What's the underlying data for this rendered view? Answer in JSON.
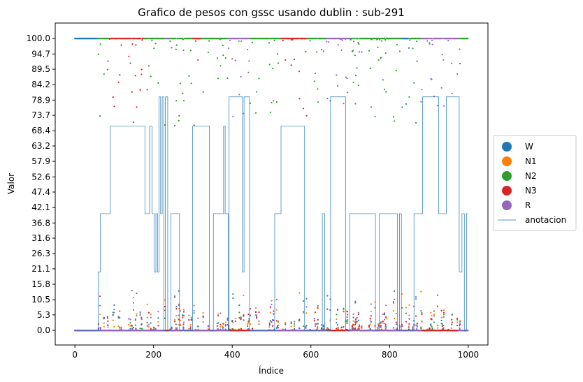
{
  "chart_data": {
    "type": "scatter",
    "title": "Grafico de pesos con gssc usando dublin :  sub-291",
    "xlabel": "Índice",
    "ylabel": "Valor",
    "xlim": [
      -50,
      1050
    ],
    "ylim": [
      -5,
      105.3
    ],
    "x_ticks": [
      0,
      200,
      400,
      600,
      800,
      1000
    ],
    "y_ticks": [
      "0.0",
      "5.3",
      "10.5",
      "15.8",
      "21.1",
      "26.3",
      "31.6",
      "36.8",
      "42.1",
      "47.4",
      "52.6",
      "57.9",
      "63.2",
      "68.4",
      "73.7",
      "78.9",
      "84.2",
      "89.5",
      "94.7",
      "100.0"
    ],
    "legend_position": "center-right-outside",
    "grid": false,
    "series": [
      {
        "name": "W",
        "color": "#1f77b4",
        "kind": "dots"
      },
      {
        "name": "N1",
        "color": "#ff7f0e",
        "kind": "dots"
      },
      {
        "name": "N2",
        "color": "#2ca02c",
        "kind": "dots"
      },
      {
        "name": "N3",
        "color": "#d62728",
        "kind": "dots"
      },
      {
        "name": "R",
        "color": "#9467bd",
        "kind": "dots"
      },
      {
        "name": "anotacion",
        "color": "#1f77b4",
        "kind": "line"
      }
    ],
    "dominant_stage_segments": [
      {
        "stage": "W",
        "from": 0,
        "to": 58
      },
      {
        "stage": "N2",
        "from": 58,
        "to": 88
      },
      {
        "stage": "N3",
        "from": 88,
        "to": 175
      },
      {
        "stage": "N2",
        "from": 175,
        "to": 230
      },
      {
        "stage": "R",
        "from": 230,
        "to": 240
      },
      {
        "stage": "N2",
        "from": 240,
        "to": 300
      },
      {
        "stage": "N3",
        "from": 300,
        "to": 320
      },
      {
        "stage": "N2",
        "from": 320,
        "to": 390
      },
      {
        "stage": "R",
        "from": 390,
        "to": 445
      },
      {
        "stage": "N2",
        "from": 445,
        "to": 525
      },
      {
        "stage": "N3",
        "from": 525,
        "to": 590
      },
      {
        "stage": "N2",
        "from": 590,
        "to": 640
      },
      {
        "stage": "R",
        "from": 640,
        "to": 700
      },
      {
        "stage": "N2",
        "from": 700,
        "to": 830
      },
      {
        "stage": "W",
        "from": 830,
        "to": 850
      },
      {
        "stage": "N2",
        "from": 850,
        "to": 880
      },
      {
        "stage": "R",
        "from": 880,
        "to": 975
      },
      {
        "stage": "N2",
        "from": 975,
        "to": 1000
      }
    ],
    "annotation_steps": [
      [
        0,
        0
      ],
      [
        57,
        0
      ],
      [
        59,
        20
      ],
      [
        65,
        40
      ],
      [
        85,
        40
      ],
      [
        90,
        70
      ],
      [
        175,
        70
      ],
      [
        178,
        40
      ],
      [
        190,
        70
      ],
      [
        196,
        40
      ],
      [
        200,
        40
      ],
      [
        202,
        20
      ],
      [
        206,
        40
      ],
      [
        210,
        20
      ],
      [
        214,
        80
      ],
      [
        218,
        40
      ],
      [
        222,
        80
      ],
      [
        226,
        0
      ],
      [
        230,
        80
      ],
      [
        236,
        0
      ],
      [
        240,
        0
      ],
      [
        244,
        40
      ],
      [
        262,
        40
      ],
      [
        266,
        0
      ],
      [
        280,
        0
      ],
      [
        297,
        0
      ],
      [
        299,
        70
      ],
      [
        340,
        70
      ],
      [
        342,
        0
      ],
      [
        350,
        0
      ],
      [
        352,
        40
      ],
      [
        375,
        40
      ],
      [
        378,
        70
      ],
      [
        382,
        40
      ],
      [
        390,
        0
      ],
      [
        392,
        80
      ],
      [
        420,
        80
      ],
      [
        426,
        20
      ],
      [
        430,
        80
      ],
      [
        440,
        80
      ],
      [
        444,
        0
      ],
      [
        505,
        0
      ],
      [
        508,
        40
      ],
      [
        520,
        40
      ],
      [
        524,
        70
      ],
      [
        580,
        70
      ],
      [
        584,
        0
      ],
      [
        625,
        0
      ],
      [
        629,
        40
      ],
      [
        635,
        0
      ],
      [
        646,
        0
      ],
      [
        650,
        80
      ],
      [
        685,
        80
      ],
      [
        688,
        0
      ],
      [
        695,
        0
      ],
      [
        699,
        40
      ],
      [
        760,
        40
      ],
      [
        764,
        0
      ],
      [
        770,
        0
      ],
      [
        774,
        40
      ],
      [
        818,
        40
      ],
      [
        820,
        0
      ],
      [
        825,
        40
      ],
      [
        830,
        0
      ],
      [
        860,
        0
      ],
      [
        862,
        40
      ],
      [
        880,
        40
      ],
      [
        884,
        80
      ],
      [
        923,
        80
      ],
      [
        925,
        40
      ],
      [
        940,
        40
      ],
      [
        944,
        80
      ],
      [
        975,
        80
      ],
      [
        977,
        20
      ],
      [
        984,
        40
      ],
      [
        990,
        0
      ],
      [
        996,
        40
      ],
      [
        1000,
        40
      ]
    ]
  }
}
